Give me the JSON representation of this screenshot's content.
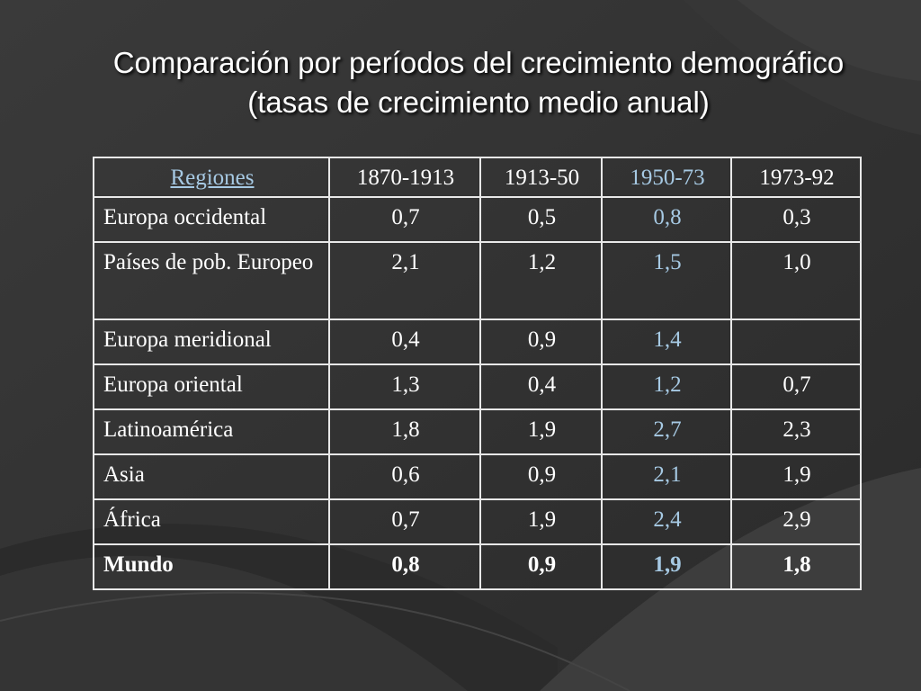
{
  "slide": {
    "title_line1": "Comparación por períodos del crecimiento demográfico",
    "title_line2": "(tasas de crecimiento medio anual)"
  },
  "table": {
    "headers": [
      "Regiones",
      "1870-1913",
      "1913-50",
      "1950-73",
      "1973-92"
    ],
    "rows": [
      [
        "Europa occidental",
        "0,7",
        "0,5",
        "0,8",
        "0,3"
      ],
      [
        "Países de pob. Europeo",
        "2,1",
        "1,2",
        "1,5",
        "1,0"
      ],
      [
        "Europa meridional",
        "0,4",
        "0,9",
        "1,4",
        ""
      ],
      [
        "Europa oriental",
        "1,3",
        "0,4",
        "1,2",
        "0,7"
      ],
      [
        "Latinoamérica",
        "1,8",
        "1,9",
        "2,7",
        "2,3"
      ],
      [
        "Asia",
        "0,6",
        "0,9",
        "2,1",
        "1,9"
      ],
      [
        "África",
        "0,7",
        "1,9",
        "2,4",
        "2,9"
      ],
      [
        "Mundo",
        "0,8",
        "0,9",
        "1,9",
        "1,8"
      ]
    ]
  },
  "colors": {
    "background": "#2f2f2f",
    "text": "#ffffff",
    "accent": "#a6c9e3",
    "border": "#e8e8e8"
  }
}
